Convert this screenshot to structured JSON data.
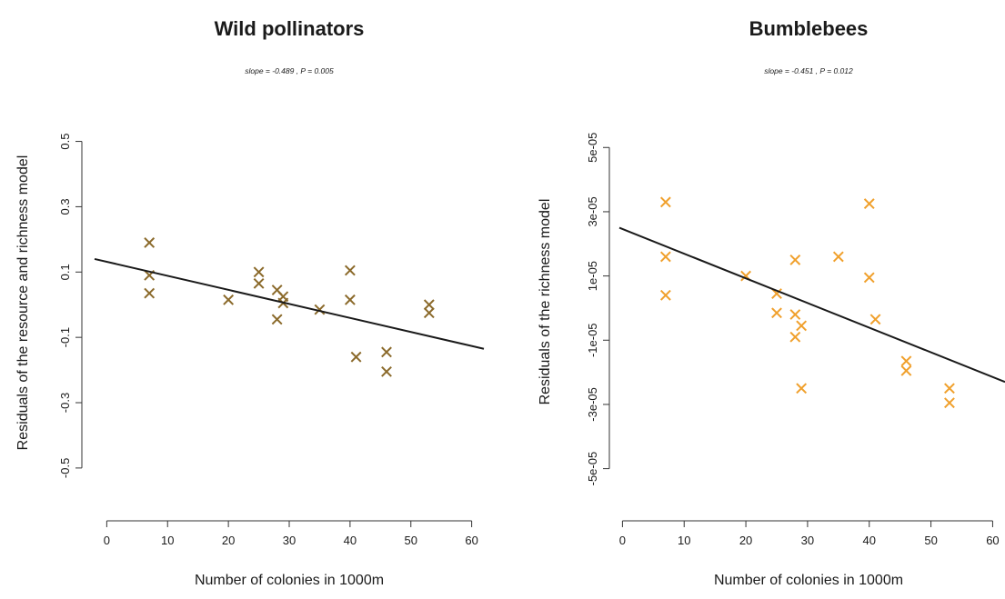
{
  "chart_data": [
    {
      "type": "scatter",
      "title": "Wild pollinators",
      "subtitle": "slope = -0.489 , P = 0.005",
      "xlabel": "Number of colonies in 1000m",
      "ylabel": "Residuals of the resource and richness model",
      "xlim": [
        -2,
        62
      ],
      "ylim": [
        -0.62,
        0.56
      ],
      "xticks": [
        0,
        10,
        20,
        30,
        40,
        50,
        60
      ],
      "xtick_labels": [
        "0",
        "10",
        "20",
        "30",
        "40",
        "50",
        "60"
      ],
      "yticks": [
        0.5,
        0.3,
        0.1,
        -0.1,
        -0.3,
        -0.5
      ],
      "ytick_labels": [
        "0.5",
        "0.3",
        "0.1",
        "-0.1",
        "-0.3",
        "-0.5"
      ],
      "grid": false,
      "marker": "x",
      "marker_color": "#8B6A2B",
      "points": [
        {
          "x": 7,
          "y": 0.19
        },
        {
          "x": 7,
          "y": 0.09
        },
        {
          "x": 7,
          "y": 0.035
        },
        {
          "x": 20,
          "y": 0.015
        },
        {
          "x": 25,
          "y": 0.1
        },
        {
          "x": 25,
          "y": 0.065
        },
        {
          "x": 28,
          "y": 0.045
        },
        {
          "x": 28,
          "y": -0.045
        },
        {
          "x": 29,
          "y": 0.025
        },
        {
          "x": 29,
          "y": 0.005
        },
        {
          "x": 35,
          "y": -0.015
        },
        {
          "x": 40,
          "y": 0.105
        },
        {
          "x": 40,
          "y": 0.015
        },
        {
          "x": 41,
          "y": -0.16
        },
        {
          "x": 46,
          "y": -0.145
        },
        {
          "x": 46,
          "y": -0.205
        },
        {
          "x": 53,
          "y": 0.0
        },
        {
          "x": 53,
          "y": -0.025
        }
      ],
      "trend": {
        "x": [
          -2,
          62
        ],
        "y": [
          0.14,
          -0.135
        ],
        "color": "#1a1a1a"
      }
    },
    {
      "type": "scatter",
      "title": "Bumblebees",
      "subtitle": "slope = -0.451 , P = 0.012",
      "xlabel": "Number of colonies in 1000m",
      "ylabel": "Residuals of the richness model",
      "xlim": [
        -0.5,
        62
      ],
      "ylim": [
        -6.2e-05,
        5.8e-05
      ],
      "xticks": [
        0,
        10,
        20,
        30,
        40,
        50,
        60
      ],
      "xtick_labels": [
        "0",
        "10",
        "20",
        "30",
        "40",
        "50",
        "60"
      ],
      "yticks": [
        5e-05,
        3e-05,
        1e-05,
        -1e-05,
        -3e-05,
        -5e-05
      ],
      "ytick_labels": [
        "5e-05",
        "3e-05",
        "1e-05",
        "-1e-05",
        "-3e-05",
        "-5e-05"
      ],
      "grid": false,
      "marker": "x",
      "marker_color": "#F0A02C",
      "points": [
        {
          "x": 7,
          "y": 3.3e-05
        },
        {
          "x": 7,
          "y": 1.6e-05
        },
        {
          "x": 7,
          "y": 4e-06
        },
        {
          "x": 20,
          "y": 1e-05
        },
        {
          "x": 25,
          "y": 4.5e-06
        },
        {
          "x": 25,
          "y": -1.5e-06
        },
        {
          "x": 28,
          "y": 1.5e-05
        },
        {
          "x": 28,
          "y": -2e-06
        },
        {
          "x": 28,
          "y": -9e-06
        },
        {
          "x": 29,
          "y": -5.5e-06
        },
        {
          "x": 29,
          "y": -2.5e-05
        },
        {
          "x": 35,
          "y": 1.6e-05
        },
        {
          "x": 40,
          "y": 3.25e-05
        },
        {
          "x": 40,
          "y": 9.5e-06
        },
        {
          "x": 41,
          "y": -3.5e-06
        },
        {
          "x": 46,
          "y": -1.65e-05
        },
        {
          "x": 46,
          "y": -1.95e-05
        },
        {
          "x": 53,
          "y": -2.5e-05
        },
        {
          "x": 53,
          "y": -2.95e-05
        }
      ],
      "trend": {
        "x": [
          -0.5,
          62
        ],
        "y": [
          2.5e-05,
          -2.3e-05
        ],
        "color": "#1a1a1a"
      }
    }
  ]
}
